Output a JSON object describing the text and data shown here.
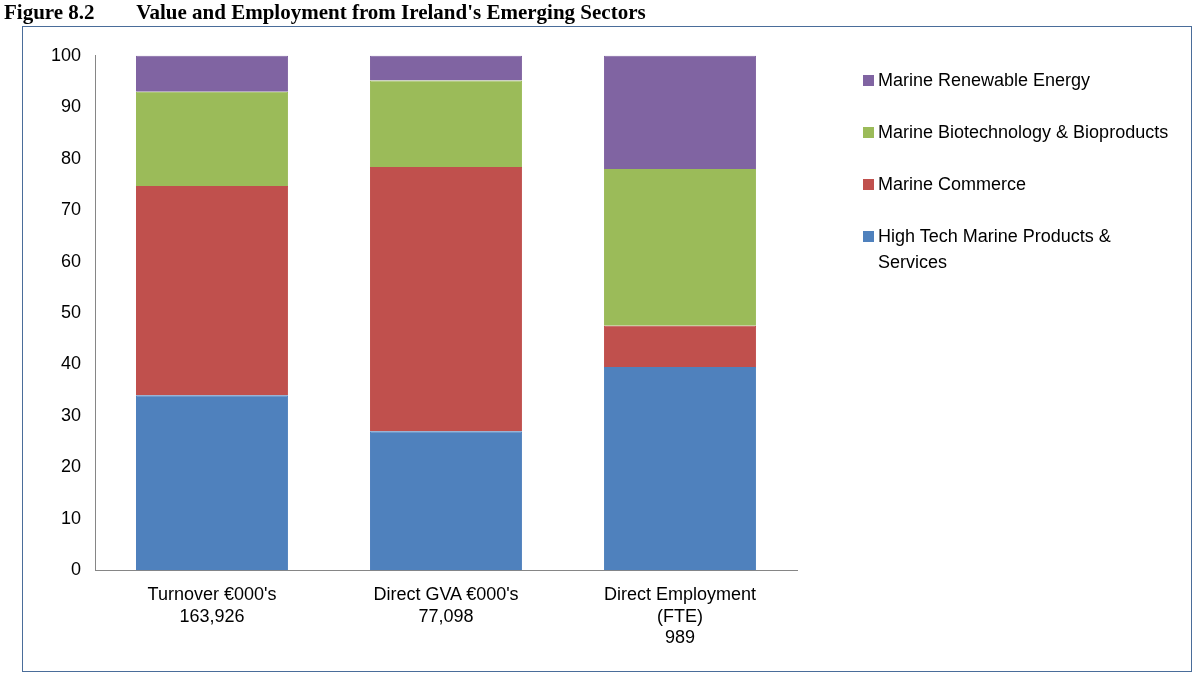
{
  "chart_data": {
    "type": "bar",
    "title": "Figure 8.2        Value and Employment from Ireland's Emerging Sectors",
    "categories": [
      "Turnover €000's\n163,926",
      "Direct GVA €000's\n77,098",
      "Direct Employment\n(FTE)\n989"
    ],
    "series": [
      {
        "name": "High Tech Marine Products & Services",
        "color": "#4f81bd",
        "values": [
          34,
          27,
          39.5
        ]
      },
      {
        "name": "Marine Commerce",
        "color": "#c0504d",
        "values": [
          40.7,
          51.4,
          8
        ]
      },
      {
        "name": "Marine Biotechnology & Bioproducts",
        "color": "#9bbb59",
        "values": [
          18.3,
          16.8,
          30.5
        ]
      },
      {
        "name": "Marine Renewable Energy",
        "color": "#8064a2",
        "values": [
          7,
          4.8,
          22
        ]
      }
    ],
    "stacked": true,
    "ylim": [
      0,
      100
    ],
    "yticks": [
      0,
      10,
      20,
      30,
      40,
      50,
      60,
      70,
      80,
      90,
      100
    ],
    "grid": false,
    "legend": "right"
  }
}
